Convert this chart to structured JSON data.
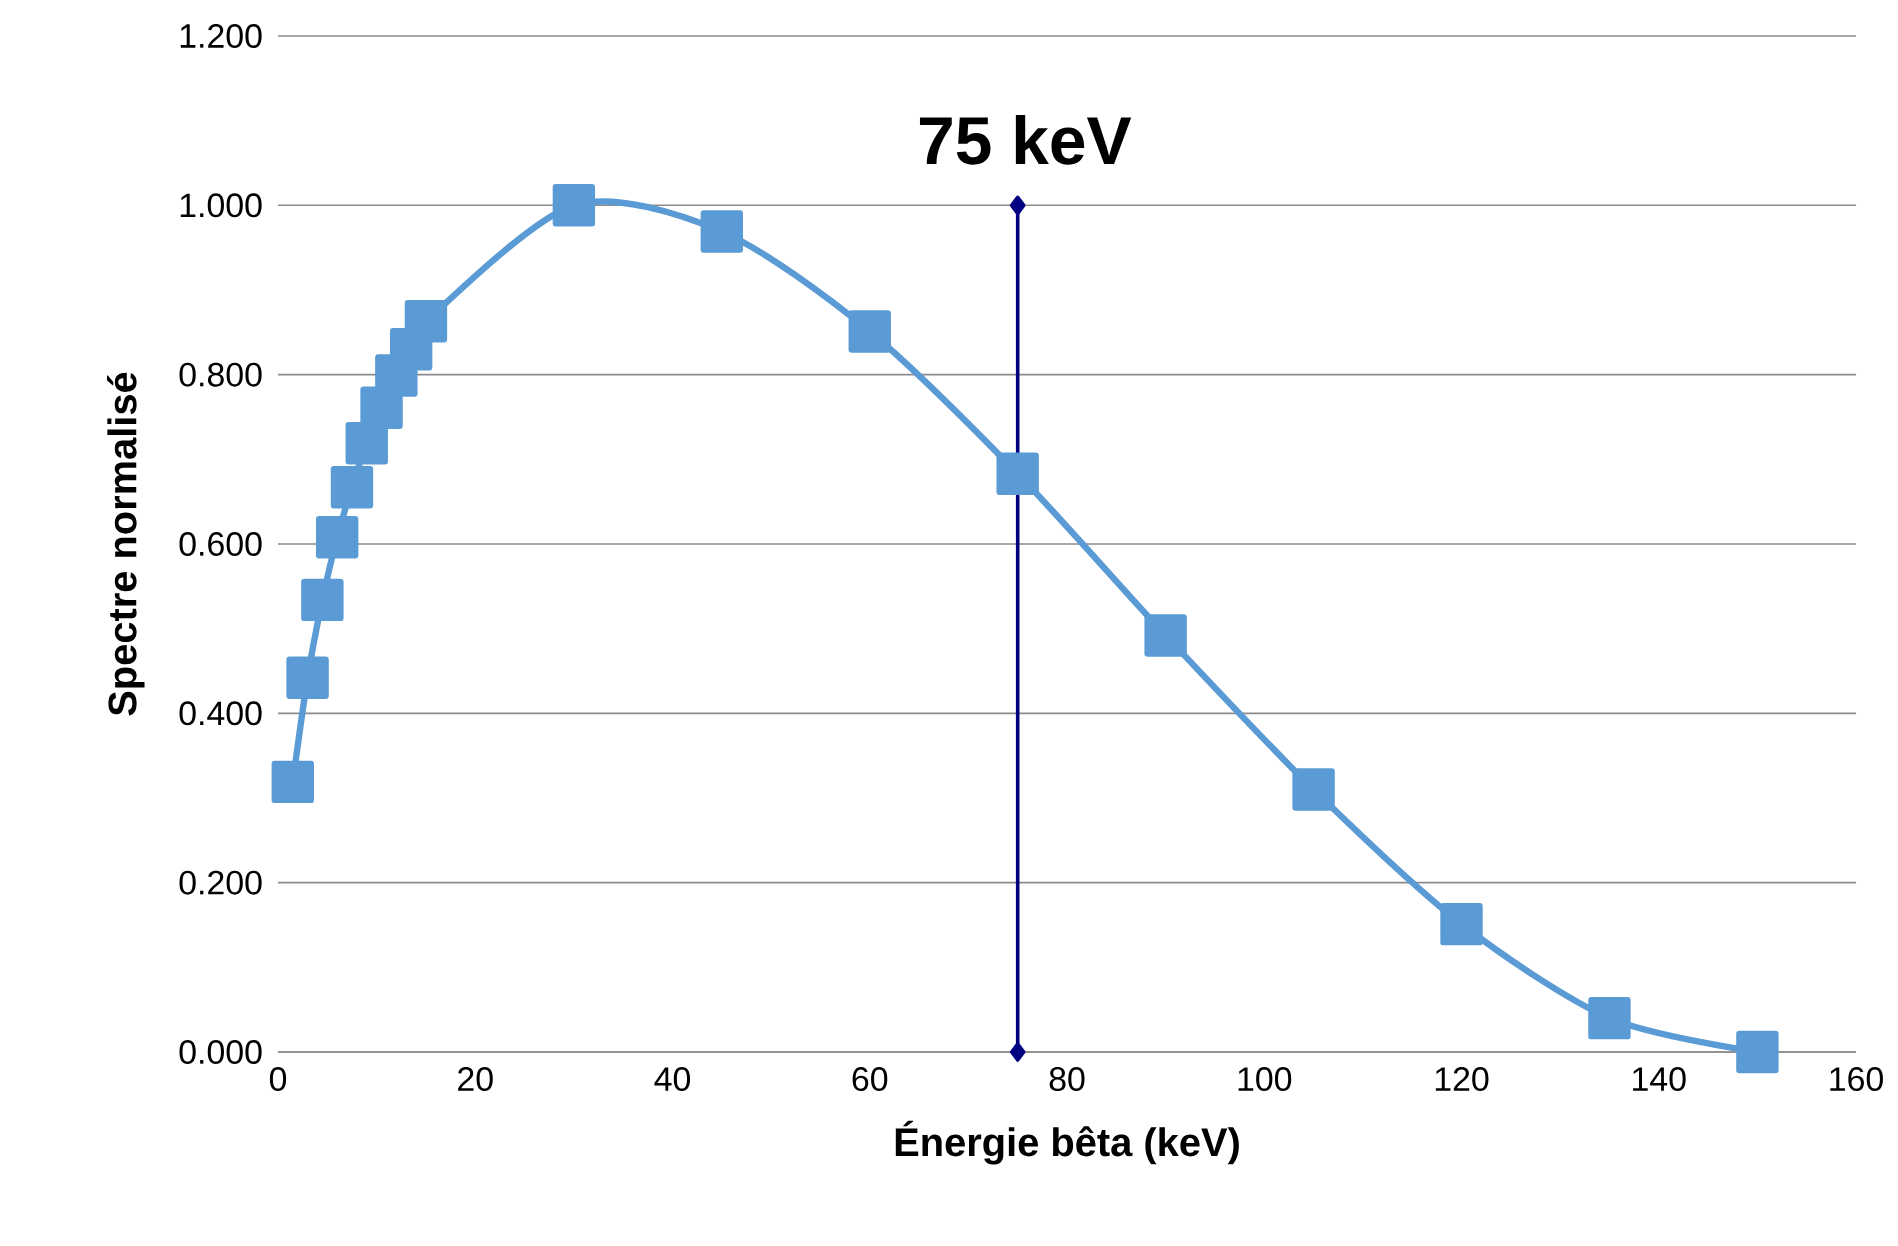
{
  "chart_data": {
    "type": "line",
    "xlabel": "Énergie bêta (keV)",
    "ylabel": "Spectre normalisé",
    "xlim": [
      0,
      160
    ],
    "xticks": [
      0,
      20,
      40,
      60,
      80,
      100,
      120,
      140,
      160
    ],
    "ylim": [
      0,
      1.2
    ],
    "yticks": [
      {
        "value": 0,
        "label": "0.000"
      },
      {
        "value": 0.2,
        "label": "0.200"
      },
      {
        "value": 0.4,
        "label": "0.400"
      },
      {
        "value": 0.6,
        "label": "0.600"
      },
      {
        "value": 0.8,
        "label": "0.800"
      },
      {
        "value": 1.0,
        "label": "1.000"
      },
      {
        "value": 1.2,
        "label": "1.200"
      }
    ],
    "grid": "y",
    "series": [
      {
        "color": "#5b9bd5",
        "marker": "square",
        "line_style": "solid",
        "x": [
          1.5,
          3,
          4.5,
          6,
          7.5,
          9,
          10.5,
          12,
          13.5,
          15,
          30,
          45,
          60,
          75,
          90,
          105,
          120,
          135,
          150
        ],
        "values": [
          0.319,
          0.442,
          0.534,
          0.608,
          0.667,
          0.719,
          0.761,
          0.799,
          0.83,
          0.863,
          1.0,
          0.969,
          0.851,
          0.683,
          0.492,
          0.31,
          0.151,
          0.04,
          0.0
        ]
      },
      {
        "color": "#000080",
        "marker": "diamond",
        "line_style": "solid",
        "x": [
          75,
          75
        ],
        "values": [
          0,
          1.0
        ]
      }
    ],
    "annotations": [
      "75 keV"
    ]
  }
}
